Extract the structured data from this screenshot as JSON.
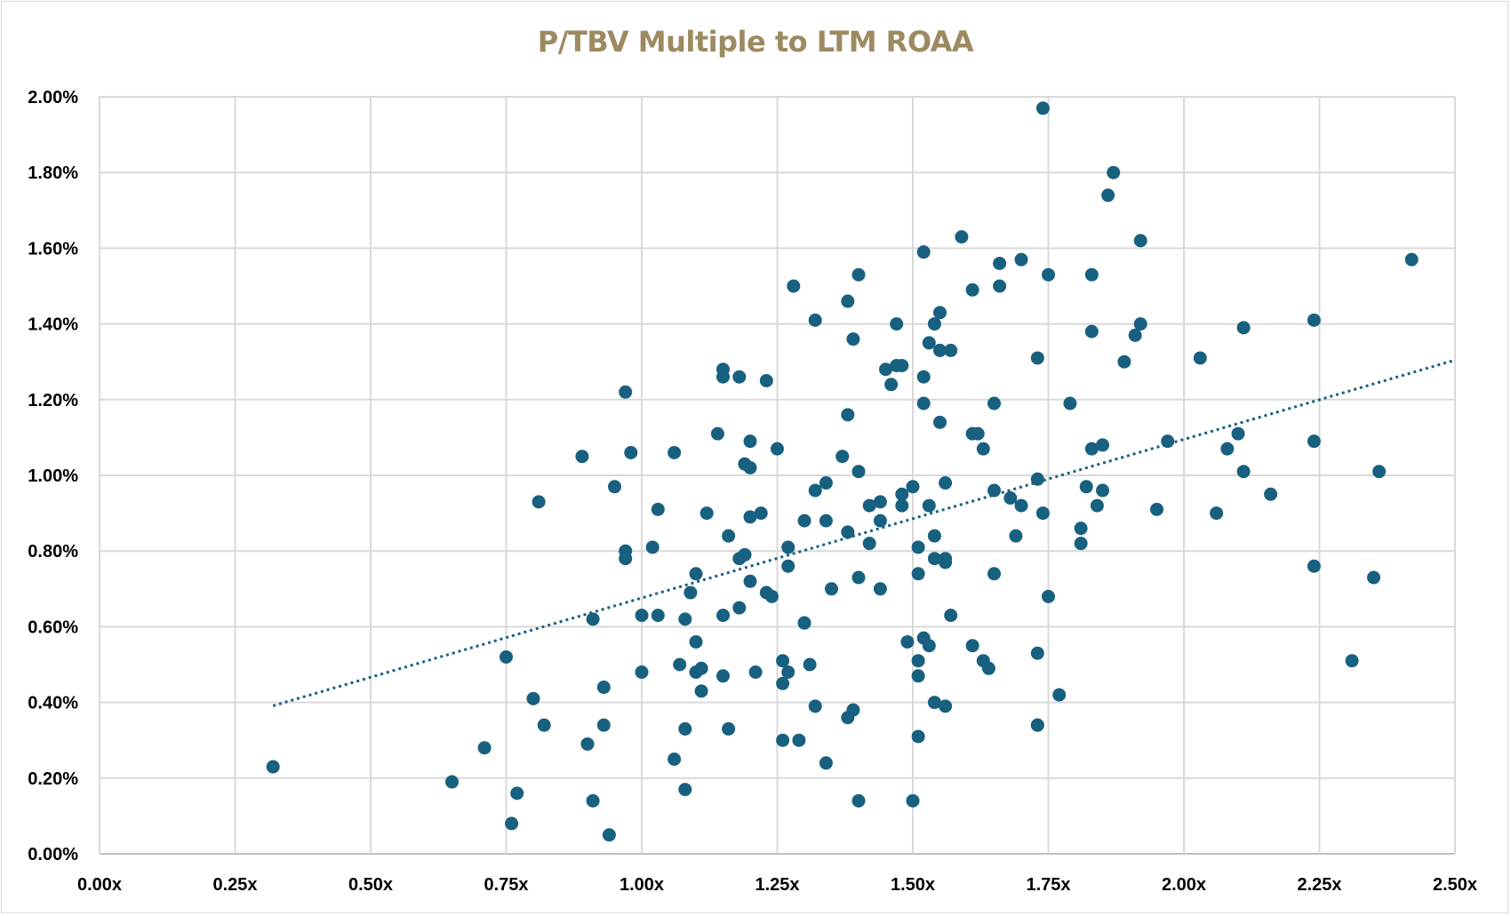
{
  "chart_data": {
    "type": "scatter",
    "title": "P/TBV Multiple to LTM ROAA",
    "xlabel": "",
    "ylabel": "",
    "xlim": [
      0,
      2.5
    ],
    "ylim": [
      0,
      2.0
    ],
    "x_unit": "P/TBV multiple (x)",
    "y_unit": "LTM ROAA (%)",
    "grid": true,
    "legend": "none",
    "x_ticks": [
      0,
      0.25,
      0.5,
      0.75,
      1.0,
      1.25,
      1.5,
      1.75,
      2.0,
      2.25,
      2.5
    ],
    "x_tick_labels": [
      "0.00x",
      "0.25x",
      "0.50x",
      "0.75x",
      "1.00x",
      "1.25x",
      "1.50x",
      "1.75x",
      "2.00x",
      "2.25x",
      "2.50x"
    ],
    "y_ticks": [
      0,
      0.2,
      0.4,
      0.6,
      0.8,
      1.0,
      1.2,
      1.4,
      1.6,
      1.8,
      2.0
    ],
    "y_tick_labels": [
      "0.00%",
      "0.20%",
      "0.40%",
      "0.60%",
      "0.80%",
      "1.00%",
      "1.20%",
      "1.40%",
      "1.60%",
      "1.80%",
      "2.00%"
    ],
    "colors": {
      "title": "#9c8a61",
      "marker": "#18607f",
      "trendline": "#18607f",
      "grid": "#d9d9d9"
    },
    "trendline": {
      "type": "linear",
      "style": "dotted",
      "x_range": [
        0.32,
        2.5
      ],
      "slope": 0.419,
      "intercept": 0.257
    },
    "points": [
      [
        0.32,
        0.23
      ],
      [
        0.65,
        0.19
      ],
      [
        0.71,
        0.28
      ],
      [
        0.75,
        0.52
      ],
      [
        0.76,
        0.08
      ],
      [
        0.77,
        0.16
      ],
      [
        0.8,
        0.41
      ],
      [
        0.81,
        0.93
      ],
      [
        0.82,
        0.34
      ],
      [
        0.89,
        1.05
      ],
      [
        0.9,
        0.29
      ],
      [
        0.91,
        0.14
      ],
      [
        0.91,
        0.62
      ],
      [
        0.93,
        0.34
      ],
      [
        0.93,
        0.44
      ],
      [
        0.94,
        0.05
      ],
      [
        0.95,
        0.97
      ],
      [
        0.97,
        1.22
      ],
      [
        0.97,
        0.8
      ],
      [
        0.97,
        0.78
      ],
      [
        0.98,
        1.06
      ],
      [
        1.0,
        0.63
      ],
      [
        1.0,
        0.48
      ],
      [
        1.02,
        0.81
      ],
      [
        1.03,
        0.63
      ],
      [
        1.03,
        0.91
      ],
      [
        1.06,
        1.06
      ],
      [
        1.06,
        0.25
      ],
      [
        1.07,
        0.5
      ],
      [
        1.08,
        0.62
      ],
      [
        1.08,
        0.17
      ],
      [
        1.08,
        0.33
      ],
      [
        1.09,
        0.69
      ],
      [
        1.1,
        0.74
      ],
      [
        1.1,
        0.56
      ],
      [
        1.1,
        0.48
      ],
      [
        1.11,
        0.49
      ],
      [
        1.11,
        0.43
      ],
      [
        1.12,
        0.9
      ],
      [
        1.14,
        1.11
      ],
      [
        1.15,
        1.26
      ],
      [
        1.15,
        1.28
      ],
      [
        1.15,
        0.47
      ],
      [
        1.15,
        0.63
      ],
      [
        1.16,
        0.84
      ],
      [
        1.16,
        0.33
      ],
      [
        1.18,
        1.26
      ],
      [
        1.18,
        0.78
      ],
      [
        1.18,
        0.65
      ],
      [
        1.19,
        0.79
      ],
      [
        1.19,
        0.79
      ],
      [
        1.19,
        1.03
      ],
      [
        1.2,
        1.02
      ],
      [
        1.2,
        1.09
      ],
      [
        1.2,
        0.89
      ],
      [
        1.2,
        0.72
      ],
      [
        1.21,
        0.48
      ],
      [
        1.22,
        0.9
      ],
      [
        1.23,
        1.25
      ],
      [
        1.23,
        0.69
      ],
      [
        1.24,
        0.68
      ],
      [
        1.25,
        1.07
      ],
      [
        1.26,
        0.51
      ],
      [
        1.26,
        0.45
      ],
      [
        1.27,
        0.81
      ],
      [
        1.27,
        0.76
      ],
      [
        1.27,
        0.48
      ],
      [
        1.26,
        0.3
      ],
      [
        1.28,
        1.5
      ],
      [
        1.29,
        0.3
      ],
      [
        1.3,
        0.61
      ],
      [
        1.3,
        0.61
      ],
      [
        1.3,
        0.88
      ],
      [
        1.31,
        0.5
      ],
      [
        1.32,
        0.96
      ],
      [
        1.32,
        1.41
      ],
      [
        1.32,
        0.39
      ],
      [
        1.34,
        0.24
      ],
      [
        1.34,
        0.98
      ],
      [
        1.34,
        0.88
      ],
      [
        1.35,
        0.7
      ],
      [
        1.37,
        1.05
      ],
      [
        1.38,
        1.16
      ],
      [
        1.38,
        0.36
      ],
      [
        1.38,
        1.46
      ],
      [
        1.38,
        0.85
      ],
      [
        1.39,
        0.38
      ],
      [
        1.39,
        1.36
      ],
      [
        1.4,
        1.01
      ],
      [
        1.4,
        0.73
      ],
      [
        1.4,
        0.14
      ],
      [
        1.4,
        1.53
      ],
      [
        1.42,
        0.82
      ],
      [
        1.42,
        0.92
      ],
      [
        1.44,
        0.93
      ],
      [
        1.44,
        0.7
      ],
      [
        1.44,
        0.88
      ],
      [
        1.45,
        1.28
      ],
      [
        1.46,
        1.24
      ],
      [
        1.47,
        1.4
      ],
      [
        1.47,
        1.29
      ],
      [
        1.48,
        0.95
      ],
      [
        1.48,
        0.92
      ],
      [
        1.48,
        1.29
      ],
      [
        1.49,
        0.56
      ],
      [
        1.5,
        0.97
      ],
      [
        1.51,
        0.31
      ],
      [
        1.5,
        0.14
      ],
      [
        1.51,
        0.74
      ],
      [
        1.51,
        0.47
      ],
      [
        1.51,
        0.81
      ],
      [
        1.51,
        0.51
      ],
      [
        1.52,
        0.57
      ],
      [
        1.52,
        1.59
      ],
      [
        1.52,
        1.26
      ],
      [
        1.52,
        1.19
      ],
      [
        1.53,
        1.35
      ],
      [
        1.53,
        0.92
      ],
      [
        1.53,
        0.55
      ],
      [
        1.54,
        0.84
      ],
      [
        1.54,
        1.4
      ],
      [
        1.54,
        0.78
      ],
      [
        1.54,
        0.4
      ],
      [
        1.55,
        1.43
      ],
      [
        1.55,
        1.14
      ],
      [
        1.55,
        1.33
      ],
      [
        1.56,
        0.78
      ],
      [
        1.56,
        0.77
      ],
      [
        1.56,
        0.39
      ],
      [
        1.56,
        0.98
      ],
      [
        1.57,
        0.63
      ],
      [
        1.57,
        1.33
      ],
      [
        1.59,
        1.63
      ],
      [
        1.61,
        0.55
      ],
      [
        1.61,
        1.49
      ],
      [
        1.61,
        1.11
      ],
      [
        1.62,
        1.11
      ],
      [
        1.63,
        1.07
      ],
      [
        1.63,
        0.51
      ],
      [
        1.64,
        0.49
      ],
      [
        1.65,
        0.96
      ],
      [
        1.65,
        1.19
      ],
      [
        1.65,
        0.74
      ],
      [
        1.66,
        1.56
      ],
      [
        1.66,
        1.5
      ],
      [
        1.68,
        0.94
      ],
      [
        1.69,
        0.84
      ],
      [
        1.7,
        1.57
      ],
      [
        1.7,
        0.92
      ],
      [
        1.73,
        1.31
      ],
      [
        1.73,
        0.34
      ],
      [
        1.73,
        0.34
      ],
      [
        1.73,
        0.53
      ],
      [
        1.73,
        0.99
      ],
      [
        1.74,
        0.9
      ],
      [
        1.74,
        1.97
      ],
      [
        1.75,
        1.53
      ],
      [
        1.75,
        0.68
      ],
      [
        1.77,
        0.42
      ],
      [
        1.79,
        1.19
      ],
      [
        1.81,
        0.82
      ],
      [
        1.81,
        0.86
      ],
      [
        1.82,
        0.97
      ],
      [
        1.83,
        1.53
      ],
      [
        1.83,
        1.38
      ],
      [
        1.83,
        1.07
      ],
      [
        1.84,
        0.92
      ],
      [
        1.85,
        1.08
      ],
      [
        1.85,
        0.96
      ],
      [
        1.86,
        1.74
      ],
      [
        1.87,
        1.8
      ],
      [
        1.89,
        1.3
      ],
      [
        1.91,
        1.37
      ],
      [
        1.92,
        1.4
      ],
      [
        1.92,
        1.62
      ],
      [
        1.95,
        0.91
      ],
      [
        1.97,
        1.09
      ],
      [
        2.03,
        1.31
      ],
      [
        2.06,
        0.9
      ],
      [
        2.08,
        1.07
      ],
      [
        2.1,
        1.11
      ],
      [
        2.11,
        1.01
      ],
      [
        2.11,
        1.39
      ],
      [
        2.16,
        0.95
      ],
      [
        2.24,
        0.76
      ],
      [
        2.24,
        1.41
      ],
      [
        2.24,
        1.09
      ],
      [
        2.31,
        0.51
      ],
      [
        2.35,
        0.73
      ],
      [
        2.36,
        1.01
      ],
      [
        2.42,
        1.57
      ]
    ]
  }
}
